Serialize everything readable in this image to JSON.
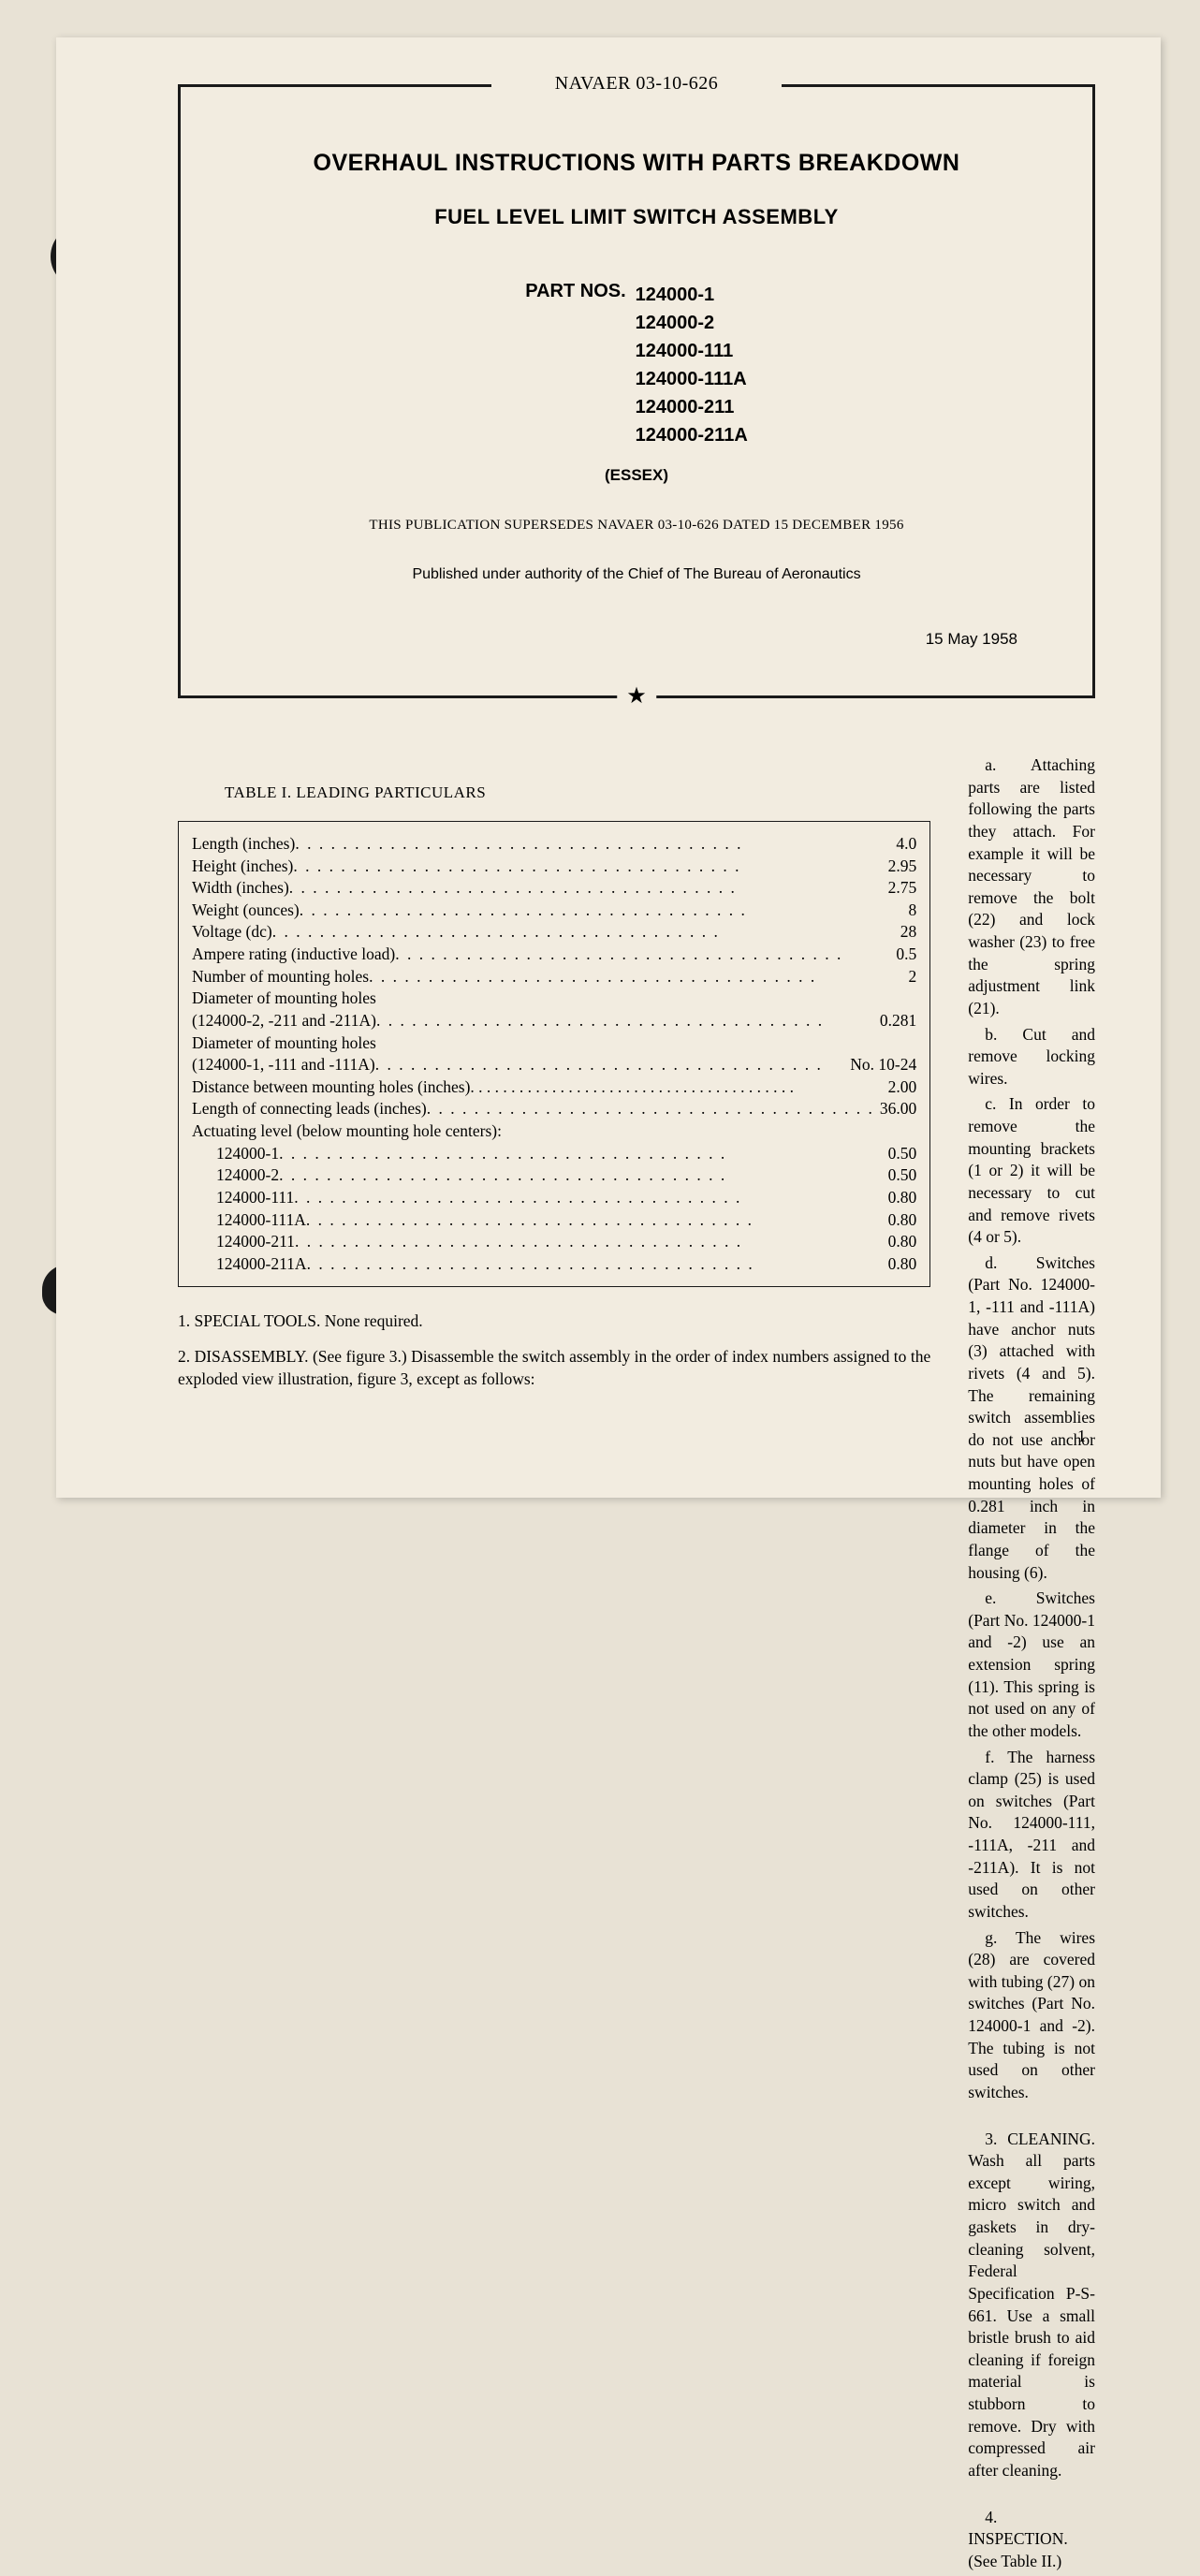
{
  "header": {
    "doc_number": "NAVAER 03-10-626",
    "main_title": "OVERHAUL INSTRUCTIONS WITH PARTS BREAKDOWN",
    "subtitle": "FUEL LEVEL LIMIT SWITCH ASSEMBLY",
    "parts_label": "PART NOS.",
    "part_numbers": [
      "124000-1",
      "124000-2",
      "124000-111",
      "124000-111A",
      "124000-211",
      "124000-211A"
    ],
    "manufacturer": "(ESSEX)",
    "supersedes": "THIS PUBLICATION SUPERSEDES NAVAER 03-10-626 DATED 15 DECEMBER 1956",
    "authority": "Published under authority of the Chief of The Bureau of Aeronautics",
    "pub_date": "15 May 1958",
    "star": "★"
  },
  "table": {
    "title": "TABLE I. LEADING PARTICULARS",
    "rows": [
      {
        "label": "Length (inches)",
        "value": "4.0",
        "type": "dot"
      },
      {
        "label": "Height (inches)",
        "value": "2.95",
        "type": "dot"
      },
      {
        "label": "Width (inches)",
        "value": "2.75",
        "type": "dot"
      },
      {
        "label": "Weight (ounces)",
        "value": "8",
        "type": "dot"
      },
      {
        "label": "Voltage (dc)",
        "value": "28",
        "type": "dot"
      },
      {
        "label": "Ampere rating (inductive load)",
        "value": "0.5",
        "type": "dot"
      },
      {
        "label": "Number of mounting holes",
        "value": "2",
        "type": "dot"
      },
      {
        "label": "Diameter of mounting holes",
        "value": "",
        "type": "plain"
      },
      {
        "label": "(124000-2, -211 and -211A)",
        "value": "0.281",
        "type": "dot"
      },
      {
        "label": "Diameter of mounting holes",
        "value": "",
        "type": "plain"
      },
      {
        "label": "(124000-1, -111 and -111A)",
        "value": "No. 10-24",
        "type": "dot"
      },
      {
        "label": "Distance between mounting holes (inches)",
        "value": "2.00",
        "type": "dot-short"
      },
      {
        "label": "Length of connecting leads (inches)",
        "value": "36.00",
        "type": "dot"
      },
      {
        "label": "Actuating level (below mounting hole centers):",
        "value": "",
        "type": "plain"
      },
      {
        "label": "124000-1",
        "value": "0.50",
        "type": "dot",
        "indent": true
      },
      {
        "label": "124000-2",
        "value": "0.50",
        "type": "dot",
        "indent": true
      },
      {
        "label": "124000-111",
        "value": "0.80",
        "type": "dot",
        "indent": true
      },
      {
        "label": "124000-111A",
        "value": "0.80",
        "type": "dot",
        "indent": true
      },
      {
        "label": "124000-211",
        "value": "0.80",
        "type": "dot",
        "indent": true
      },
      {
        "label": "124000-211A",
        "value": "0.80",
        "type": "dot",
        "indent": true
      }
    ]
  },
  "left_paras": [
    "1. SPECIAL TOOLS. None required.",
    "2. DISASSEMBLY. (See figure 3.) Disassemble the switch assembly in the order of index numbers assigned to the exploded view illustration, figure 3, except as follows:"
  ],
  "right_paras": [
    {
      "text": "a. Attaching parts are listed following the parts they attach. For example it will be necessary to remove the bolt (22) and lock washer (23) to free the spring adjustment link (21).",
      "gap": false
    },
    {
      "text": "b. Cut and remove locking wires.",
      "gap": false
    },
    {
      "text": "c. In order to remove the mounting brackets (1 or 2) it will be necessary to cut and remove rivets (4 or 5).",
      "gap": false
    },
    {
      "text": "d. Switches (Part No. 124000-1, -111 and -111A) have anchor nuts (3) attached with rivets (4 and 5). The remaining switch assemblies do not use anchor nuts but have open mounting holes of 0.281 inch in diameter in the flange of the housing (6).",
      "gap": false
    },
    {
      "text": "e. Switches (Part No. 124000-1 and -2) use an extension spring (11). This spring is not used on any of the other models.",
      "gap": false
    },
    {
      "text": "f. The harness clamp (25) is used on switches (Part No. 124000-111, -111A, -211 and -211A). It is not used on other switches.",
      "gap": false
    },
    {
      "text": "g. The wires (28) are covered with tubing (27) on switches (Part No. 124000-1 and -2). The tubing is not used on other switches.",
      "gap": false
    },
    {
      "text": "3. CLEANING. Wash all parts except wiring, micro switch and gaskets in dry-cleaning solvent, Federal Specification P-S-661. Use a small bristle brush to aid cleaning if foreign material is stubborn to remove. Dry with compressed air after cleaning.",
      "gap": true
    },
    {
      "text": "4. INSPECTION. (See Table II.)",
      "gap": true
    }
  ],
  "page_number": "1",
  "colors": {
    "page_bg": "#f2ece0",
    "body_bg": "#e8e2d5",
    "ink": "#1a1a1a"
  }
}
